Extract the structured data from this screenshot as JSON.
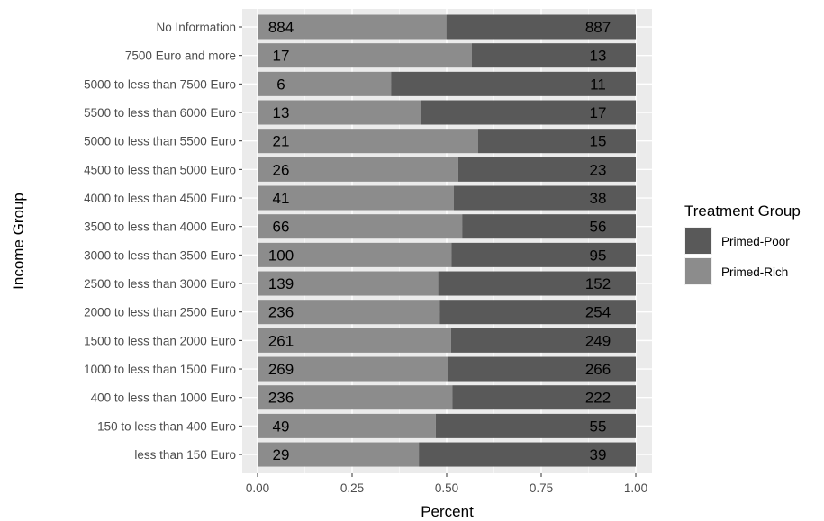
{
  "chart_data": {
    "type": "bar",
    "orientation": "horizontal",
    "stacked": "percent",
    "xlabel": "Percent",
    "ylabel": "Income Group",
    "xlim": [
      0,
      1
    ],
    "x_ticks": [
      "0.00",
      "0.25",
      "0.50",
      "0.75",
      "1.00"
    ],
    "grid": true,
    "legend": {
      "title": "Treatment Group",
      "placement": "right",
      "entries": [
        {
          "name": "Primed-Poor",
          "color": "#595959"
        },
        {
          "name": "Primed-Rich",
          "color": "#8c8c8c"
        }
      ]
    },
    "categories": [
      "No Information",
      "7500 Euro and more",
      "5000 to less than 7500 Euro",
      "5500 to less than 6000 Euro",
      "5000 to less than 5500 Euro",
      "4500 to less than 5000 Euro",
      "4000 to less than 4500 Euro",
      "3500 to less than 4000 Euro",
      "3000 to less than 3500 Euro",
      "2500 to less than 3000 Euro",
      "2000 to less than 2500 Euro",
      "1500 to less than 2000 Euro",
      "1000 to less than 1500 Euro",
      "400 to less than 1000 Euro",
      "150 to less than 400 Euro",
      "less than 150 Euro"
    ],
    "series": [
      {
        "name": "Primed-Rich",
        "color": "#8c8c8c",
        "values": [
          884,
          17,
          6,
          13,
          21,
          26,
          41,
          66,
          100,
          139,
          236,
          261,
          269,
          236,
          49,
          29
        ]
      },
      {
        "name": "Primed-Poor",
        "color": "#595959",
        "values": [
          887,
          13,
          11,
          17,
          15,
          23,
          38,
          56,
          95,
          152,
          254,
          249,
          266,
          222,
          55,
          39
        ]
      }
    ]
  }
}
